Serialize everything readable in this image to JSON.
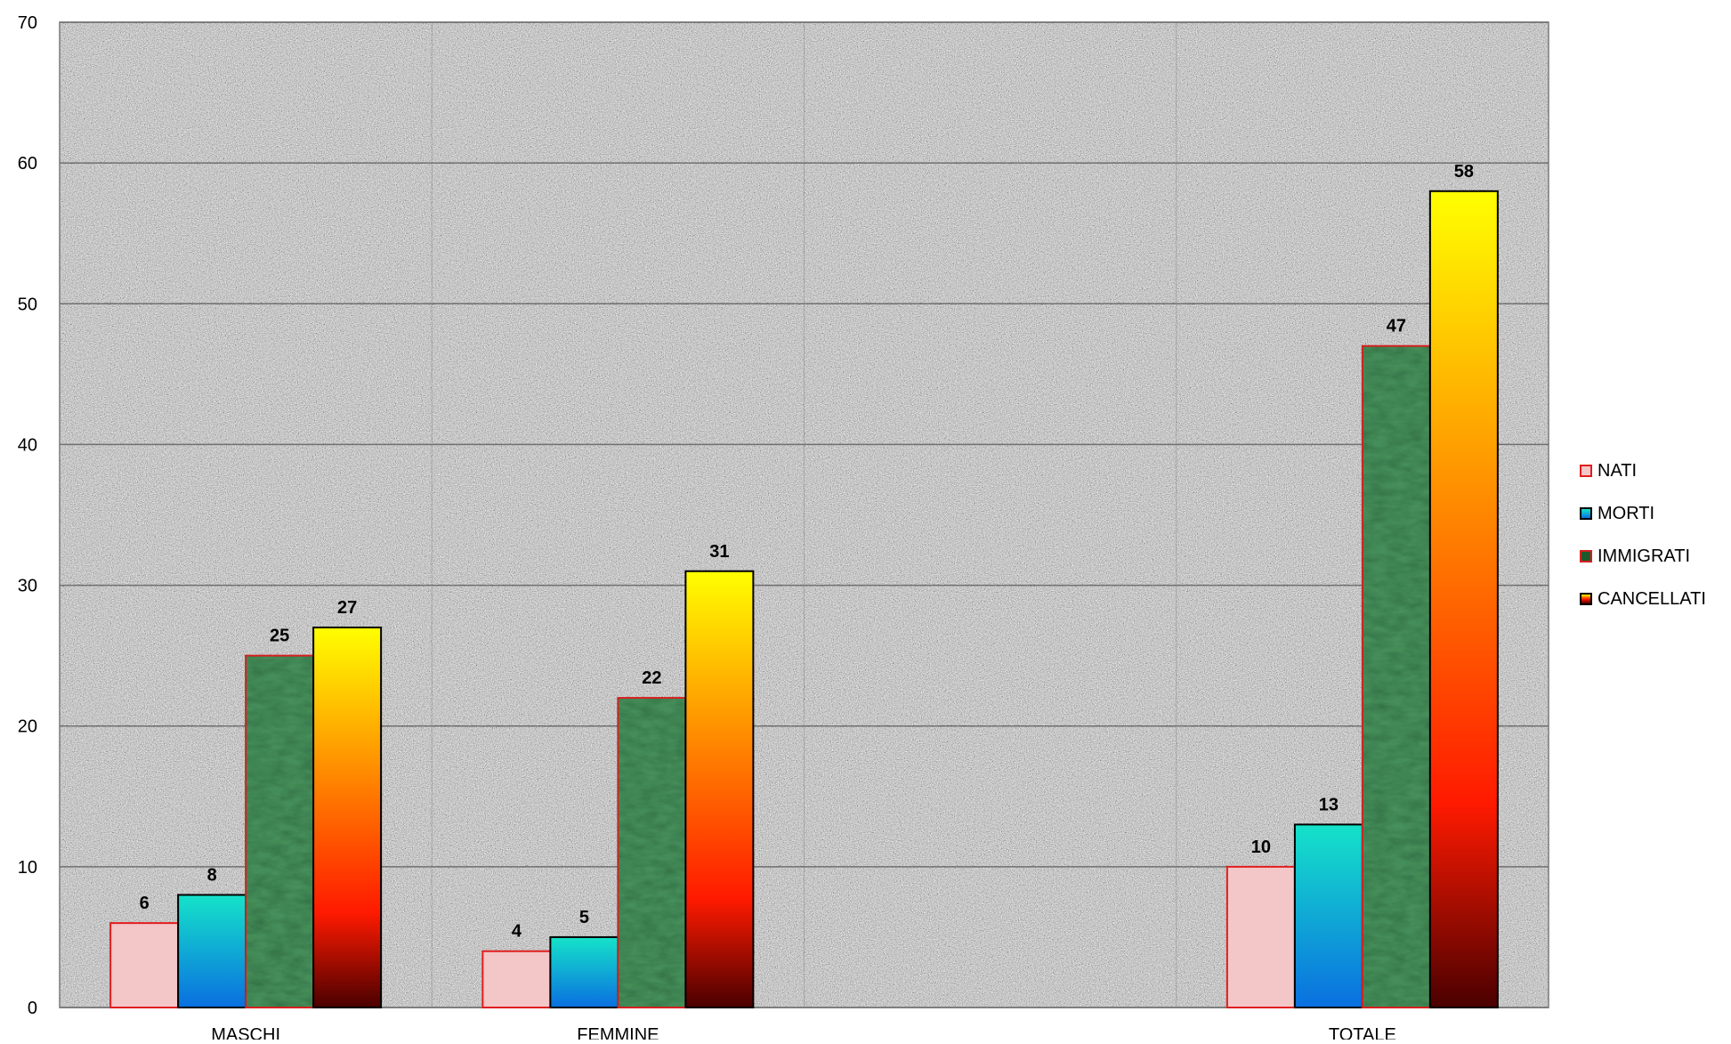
{
  "colors": {
    "nati": "#f3c6c8",
    "nati_border": "#e01e1e",
    "morti_top": "#15e3c9",
    "morti_bottom": "#0a6fe0",
    "immigrati": "#1c5a2c",
    "immigrati_border": "#d42020",
    "cancellati_top": "#ffff00",
    "cancellati_mid": "#ff1a00",
    "cancellati_bottom": "#4a0000",
    "plot_bg": "#8e8e8e",
    "gridline": "#6f6f6f"
  },
  "chart_data": {
    "type": "bar",
    "categories": [
      "MASCHI",
      "FEMMINE",
      "",
      "TOTALE"
    ],
    "series": [
      {
        "name": "NATI",
        "values": [
          6,
          4,
          null,
          10
        ],
        "labels": [
          "6",
          "4",
          "",
          "10"
        ]
      },
      {
        "name": "MORTI",
        "values": [
          8,
          5,
          null,
          13
        ],
        "labels": [
          "8",
          "5",
          "",
          "13"
        ]
      },
      {
        "name": "IMMIGRATI",
        "values": [
          25,
          22,
          null,
          47
        ],
        "labels": [
          "25",
          "22",
          "",
          "47"
        ]
      },
      {
        "name": "CANCELLATI",
        "values": [
          27,
          31,
          null,
          58
        ],
        "labels": [
          "27",
          "31",
          "",
          "58"
        ]
      }
    ],
    "ylim": [
      0,
      70
    ],
    "yticks": [
      0,
      10,
      20,
      30,
      40,
      50,
      60,
      70
    ],
    "ytick_labels": [
      "0",
      "10",
      "20",
      "30",
      "40",
      "50",
      "60",
      "70"
    ],
    "grid": true,
    "legend_position": "right",
    "title": "",
    "xlabel": "",
    "ylabel": ""
  },
  "legend": [
    {
      "label": "NATI",
      "icon": "nati-swatch"
    },
    {
      "label": "MORTI",
      "icon": "morti-swatch"
    },
    {
      "label": "IMMIGRATI",
      "icon": "immigrati-swatch"
    },
    {
      "label": "CANCELLATI",
      "icon": "cancellati-swatch"
    }
  ]
}
